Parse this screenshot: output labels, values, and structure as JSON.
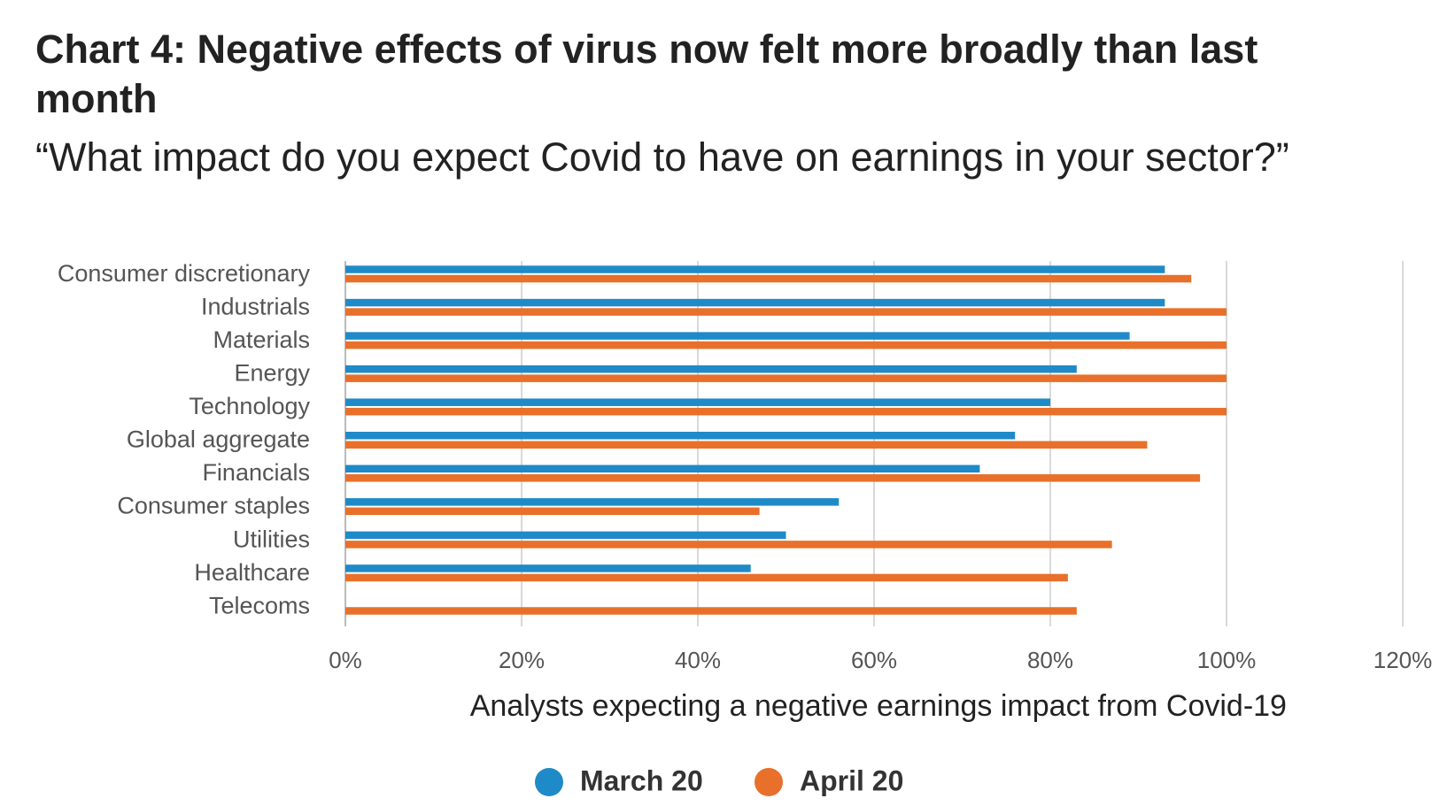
{
  "chart_data": {
    "type": "hbar",
    "title": "Chart 4: Negative effects of virus now felt more broadly than last month",
    "subtitle": "“What impact do you expect Covid to have on earnings in your sector?”",
    "x_label": "Analysts expecting a negative earnings impact from Covid-19",
    "categories": [
      "Consumer discretionary",
      "Industrials",
      "Materials",
      "Energy",
      "Technology",
      "Global aggregate",
      "Financials",
      "Consumer staples",
      "Utilities",
      "Healthcare",
      "Telecoms"
    ],
    "series": [
      {
        "name": "March 20",
        "color": "#1f8ac8",
        "values": [
          93,
          93,
          89,
          83,
          80,
          76,
          72,
          56,
          50,
          46,
          0
        ]
      },
      {
        "name": "April 20",
        "color": "#e8702a",
        "values": [
          96,
          100,
          100,
          100,
          100,
          91,
          97,
          47,
          87,
          82,
          83
        ]
      }
    ],
    "xlim": [
      0,
      120
    ],
    "xticks": [
      {
        "value": 0,
        "label": "0%"
      },
      {
        "value": 20,
        "label": "20%"
      },
      {
        "value": 40,
        "label": "40%"
      },
      {
        "value": 60,
        "label": "60%"
      },
      {
        "value": 80,
        "label": "80%"
      },
      {
        "value": 100,
        "label": "100%"
      },
      {
        "value": 120,
        "label": "120%"
      }
    ],
    "grid": true,
    "legend": "bottom"
  }
}
